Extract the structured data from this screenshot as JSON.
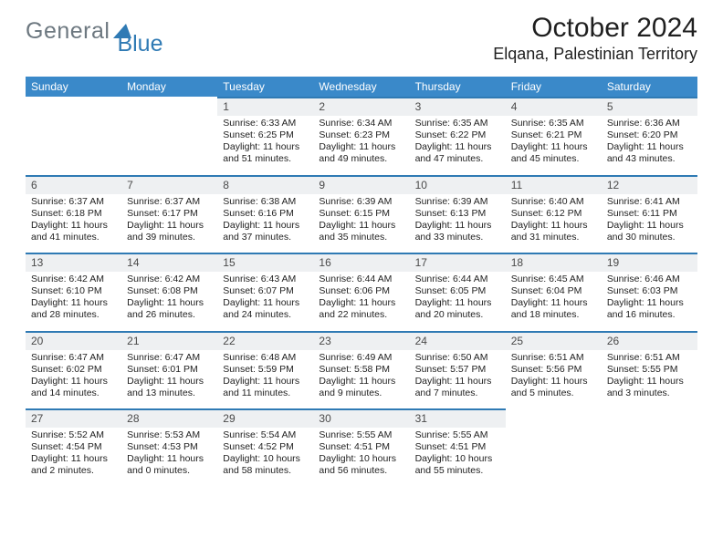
{
  "brand": {
    "general": "General",
    "blue": "Blue"
  },
  "header": {
    "month": "October 2024",
    "location": "Elqana, Palestinian Territory"
  },
  "colors": {
    "header_bar": "#3a89c9",
    "accent": "#2f7ab4",
    "daynum_bg": "#eef0f2",
    "text": "#232323",
    "background": "#ffffff",
    "brand_gray": "#6d7880"
  },
  "weekdays": [
    "Sunday",
    "Monday",
    "Tuesday",
    "Wednesday",
    "Thursday",
    "Friday",
    "Saturday"
  ],
  "first_weekday_index": 2,
  "days_in_month": 31,
  "days": {
    "1": {
      "sunrise": "6:33 AM",
      "sunset": "6:25 PM",
      "daylight": "11 hours and 51 minutes."
    },
    "2": {
      "sunrise": "6:34 AM",
      "sunset": "6:23 PM",
      "daylight": "11 hours and 49 minutes."
    },
    "3": {
      "sunrise": "6:35 AM",
      "sunset": "6:22 PM",
      "daylight": "11 hours and 47 minutes."
    },
    "4": {
      "sunrise": "6:35 AM",
      "sunset": "6:21 PM",
      "daylight": "11 hours and 45 minutes."
    },
    "5": {
      "sunrise": "6:36 AM",
      "sunset": "6:20 PM",
      "daylight": "11 hours and 43 minutes."
    },
    "6": {
      "sunrise": "6:37 AM",
      "sunset": "6:18 PM",
      "daylight": "11 hours and 41 minutes."
    },
    "7": {
      "sunrise": "6:37 AM",
      "sunset": "6:17 PM",
      "daylight": "11 hours and 39 minutes."
    },
    "8": {
      "sunrise": "6:38 AM",
      "sunset": "6:16 PM",
      "daylight": "11 hours and 37 minutes."
    },
    "9": {
      "sunrise": "6:39 AM",
      "sunset": "6:15 PM",
      "daylight": "11 hours and 35 minutes."
    },
    "10": {
      "sunrise": "6:39 AM",
      "sunset": "6:13 PM",
      "daylight": "11 hours and 33 minutes."
    },
    "11": {
      "sunrise": "6:40 AM",
      "sunset": "6:12 PM",
      "daylight": "11 hours and 31 minutes."
    },
    "12": {
      "sunrise": "6:41 AM",
      "sunset": "6:11 PM",
      "daylight": "11 hours and 30 minutes."
    },
    "13": {
      "sunrise": "6:42 AM",
      "sunset": "6:10 PM",
      "daylight": "11 hours and 28 minutes."
    },
    "14": {
      "sunrise": "6:42 AM",
      "sunset": "6:08 PM",
      "daylight": "11 hours and 26 minutes."
    },
    "15": {
      "sunrise": "6:43 AM",
      "sunset": "6:07 PM",
      "daylight": "11 hours and 24 minutes."
    },
    "16": {
      "sunrise": "6:44 AM",
      "sunset": "6:06 PM",
      "daylight": "11 hours and 22 minutes."
    },
    "17": {
      "sunrise": "6:44 AM",
      "sunset": "6:05 PM",
      "daylight": "11 hours and 20 minutes."
    },
    "18": {
      "sunrise": "6:45 AM",
      "sunset": "6:04 PM",
      "daylight": "11 hours and 18 minutes."
    },
    "19": {
      "sunrise": "6:46 AM",
      "sunset": "6:03 PM",
      "daylight": "11 hours and 16 minutes."
    },
    "20": {
      "sunrise": "6:47 AM",
      "sunset": "6:02 PM",
      "daylight": "11 hours and 14 minutes."
    },
    "21": {
      "sunrise": "6:47 AM",
      "sunset": "6:01 PM",
      "daylight": "11 hours and 13 minutes."
    },
    "22": {
      "sunrise": "6:48 AM",
      "sunset": "5:59 PM",
      "daylight": "11 hours and 11 minutes."
    },
    "23": {
      "sunrise": "6:49 AM",
      "sunset": "5:58 PM",
      "daylight": "11 hours and 9 minutes."
    },
    "24": {
      "sunrise": "6:50 AM",
      "sunset": "5:57 PM",
      "daylight": "11 hours and 7 minutes."
    },
    "25": {
      "sunrise": "6:51 AM",
      "sunset": "5:56 PM",
      "daylight": "11 hours and 5 minutes."
    },
    "26": {
      "sunrise": "6:51 AM",
      "sunset": "5:55 PM",
      "daylight": "11 hours and 3 minutes."
    },
    "27": {
      "sunrise": "5:52 AM",
      "sunset": "4:54 PM",
      "daylight": "11 hours and 2 minutes."
    },
    "28": {
      "sunrise": "5:53 AM",
      "sunset": "4:53 PM",
      "daylight": "11 hours and 0 minutes."
    },
    "29": {
      "sunrise": "5:54 AM",
      "sunset": "4:52 PM",
      "daylight": "10 hours and 58 minutes."
    },
    "30": {
      "sunrise": "5:55 AM",
      "sunset": "4:51 PM",
      "daylight": "10 hours and 56 minutes."
    },
    "31": {
      "sunrise": "5:55 AM",
      "sunset": "4:51 PM",
      "daylight": "10 hours and 55 minutes."
    }
  },
  "labels": {
    "sunrise": "Sunrise: ",
    "sunset": "Sunset: ",
    "daylight": "Daylight: "
  }
}
